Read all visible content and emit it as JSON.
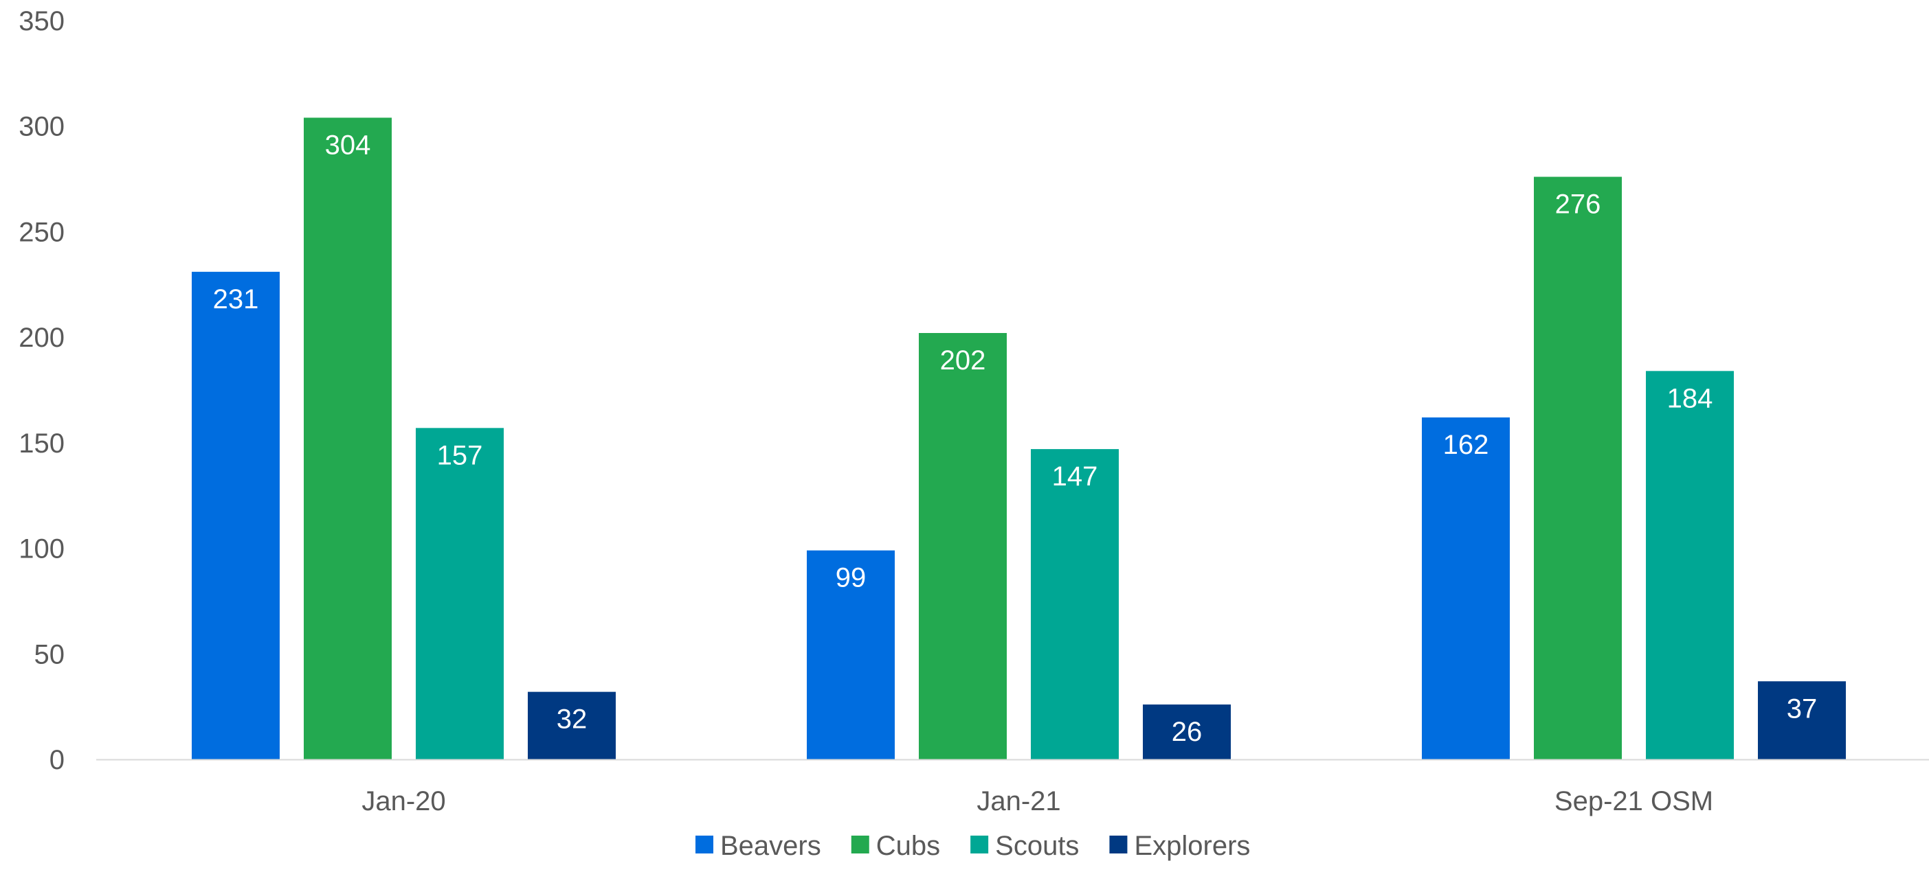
{
  "chart_data": {
    "type": "bar",
    "title": "",
    "xlabel": "",
    "ylabel": "",
    "categories": [
      "Jan-20",
      "Jan-21",
      "Sep-21 OSM"
    ],
    "series": [
      {
        "name": "Beavers",
        "values": [
          231,
          99,
          162
        ],
        "color": "#006ddf"
      },
      {
        "name": "Cubs",
        "values": [
          304,
          202,
          276
        ],
        "color": "#23a950"
      },
      {
        "name": "Scouts",
        "values": [
          157,
          147,
          184
        ],
        "color": "#00a794"
      },
      {
        "name": "Explorers",
        "values": [
          32,
          26,
          37
        ],
        "color": "#003982"
      }
    ],
    "ylim": [
      0,
      350
    ],
    "yticks": [
      0,
      50,
      100,
      150,
      200,
      250,
      300,
      350
    ],
    "grid": false,
    "legend_position": "bottom",
    "data_labels": true,
    "axis_color": "#d9d9d9",
    "text_color": "#595959"
  }
}
